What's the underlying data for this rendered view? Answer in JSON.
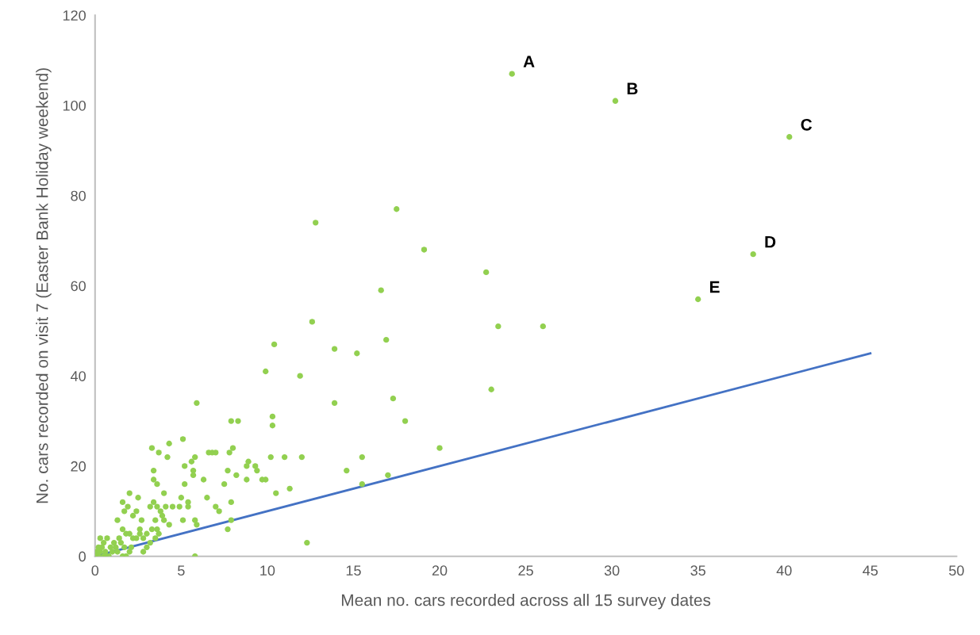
{
  "chart_data": {
    "type": "scatter",
    "xlabel": "Mean no. cars recorded across all 15 survey dates",
    "ylabel": "No. cars recorded on visit 7 (Easter Bank Holiday weekend)",
    "xlim": [
      0,
      50
    ],
    "ylim": [
      0,
      120
    ],
    "xticks": [
      0,
      5,
      10,
      15,
      20,
      25,
      30,
      35,
      40,
      45,
      50
    ],
    "yticks": [
      0,
      20,
      40,
      60,
      80,
      100,
      120
    ],
    "grid": false,
    "legend": false,
    "marker": "circle",
    "series": [
      {
        "color": "#92d050",
        "x": [
          24.2,
          30.2,
          40.3,
          38.2,
          35,
          17.5,
          12.8,
          19.1,
          22.7,
          16.6,
          23.4,
          26,
          12.6,
          16.9,
          10.4,
          13.9,
          15.2,
          9.9,
          11.9,
          23,
          17.3,
          13.9,
          5.9,
          10.3,
          10.3,
          7.9,
          8.3,
          18,
          20,
          11,
          10.2,
          15.5,
          12,
          14.6,
          11.3,
          10.5,
          15.5,
          17,
          12.3,
          5.8,
          3.3,
          3.7,
          4.3,
          4.2,
          5.1,
          5.8,
          5.6,
          5.2,
          5.7,
          5.7,
          6.6,
          6.8,
          7.0,
          6.3,
          7.8,
          8.0,
          8.2,
          7.7,
          8.9,
          8.8,
          9.3,
          9.4,
          9.7,
          9.9,
          8.8,
          7.5,
          7.0,
          7.2,
          6.5,
          7.9,
          7.7,
          7.9,
          5.8,
          5.9,
          5.2,
          5.4,
          5.4,
          4.9,
          5.0,
          5.1,
          4.0,
          4.1,
          4.5,
          3.4,
          3.6,
          3.4,
          3.4,
          3.2,
          3.6,
          3.8,
          3.9,
          4.0,
          4.3,
          3.5,
          3.6,
          3.3,
          3.7,
          3.5,
          3.2,
          3.0,
          2.8,
          2.6,
          2.7,
          2.5,
          2.4,
          2.2,
          2.0,
          1.9,
          1.7,
          1.6,
          1.3,
          1.6,
          1.8,
          2.0,
          2.2,
          2.4,
          2.6,
          2.8,
          3.0,
          2.1,
          2.0,
          1.8,
          1.5,
          1.4,
          1.2,
          1.0,
          0.8,
          0.6,
          0.4,
          0.3,
          0.7,
          0.5,
          0.2,
          0.1,
          0,
          0.3,
          0.9,
          1.1,
          1.3,
          1.6,
          1.7,
          0.5,
          0.2,
          0.6
        ],
        "values": [
          107,
          101,
          93,
          67,
          57,
          77,
          74,
          68,
          63,
          59,
          51,
          51,
          52,
          48,
          47,
          46,
          45,
          41,
          40,
          37,
          35,
          34,
          34,
          31,
          29,
          30,
          30,
          30,
          24,
          22,
          22,
          22,
          22,
          19,
          15,
          14,
          16,
          18,
          3,
          0,
          24,
          23,
          25,
          22,
          26,
          22,
          21,
          20,
          19,
          18,
          23,
          23,
          23,
          17,
          23,
          24,
          18,
          19,
          21,
          20,
          20,
          19,
          17,
          17,
          17,
          16,
          11,
          10,
          13,
          12,
          6,
          8,
          8,
          7,
          16,
          12,
          11,
          11,
          13,
          8,
          14,
          11,
          11,
          17,
          16,
          19,
          12,
          11,
          11,
          10,
          9,
          8,
          7,
          8,
          6,
          6,
          5,
          4,
          3,
          2,
          1,
          6,
          8,
          13,
          10,
          9,
          14,
          11,
          10,
          12,
          8,
          6,
          5,
          5,
          4,
          4,
          5,
          4,
          5,
          2,
          1,
          0,
          3,
          4,
          2,
          1,
          0,
          1,
          2,
          4,
          4,
          0,
          0,
          1,
          0,
          1,
          2,
          3,
          1,
          0,
          2,
          3,
          2,
          0
        ]
      },
      {
        "type": "line",
        "color": "#4472c4",
        "x": [
          0,
          45
        ],
        "values": [
          0,
          45
        ],
        "marker": "none",
        "line_style": "solid"
      }
    ],
    "annotations": [
      {
        "text": "A",
        "x": 24.2,
        "y": 107
      },
      {
        "text": "B",
        "x": 30.2,
        "y": 101
      },
      {
        "text": "C",
        "x": 40.3,
        "y": 93
      },
      {
        "text": "D",
        "x": 38.2,
        "y": 67
      },
      {
        "text": "E",
        "x": 35,
        "y": 57
      }
    ]
  }
}
